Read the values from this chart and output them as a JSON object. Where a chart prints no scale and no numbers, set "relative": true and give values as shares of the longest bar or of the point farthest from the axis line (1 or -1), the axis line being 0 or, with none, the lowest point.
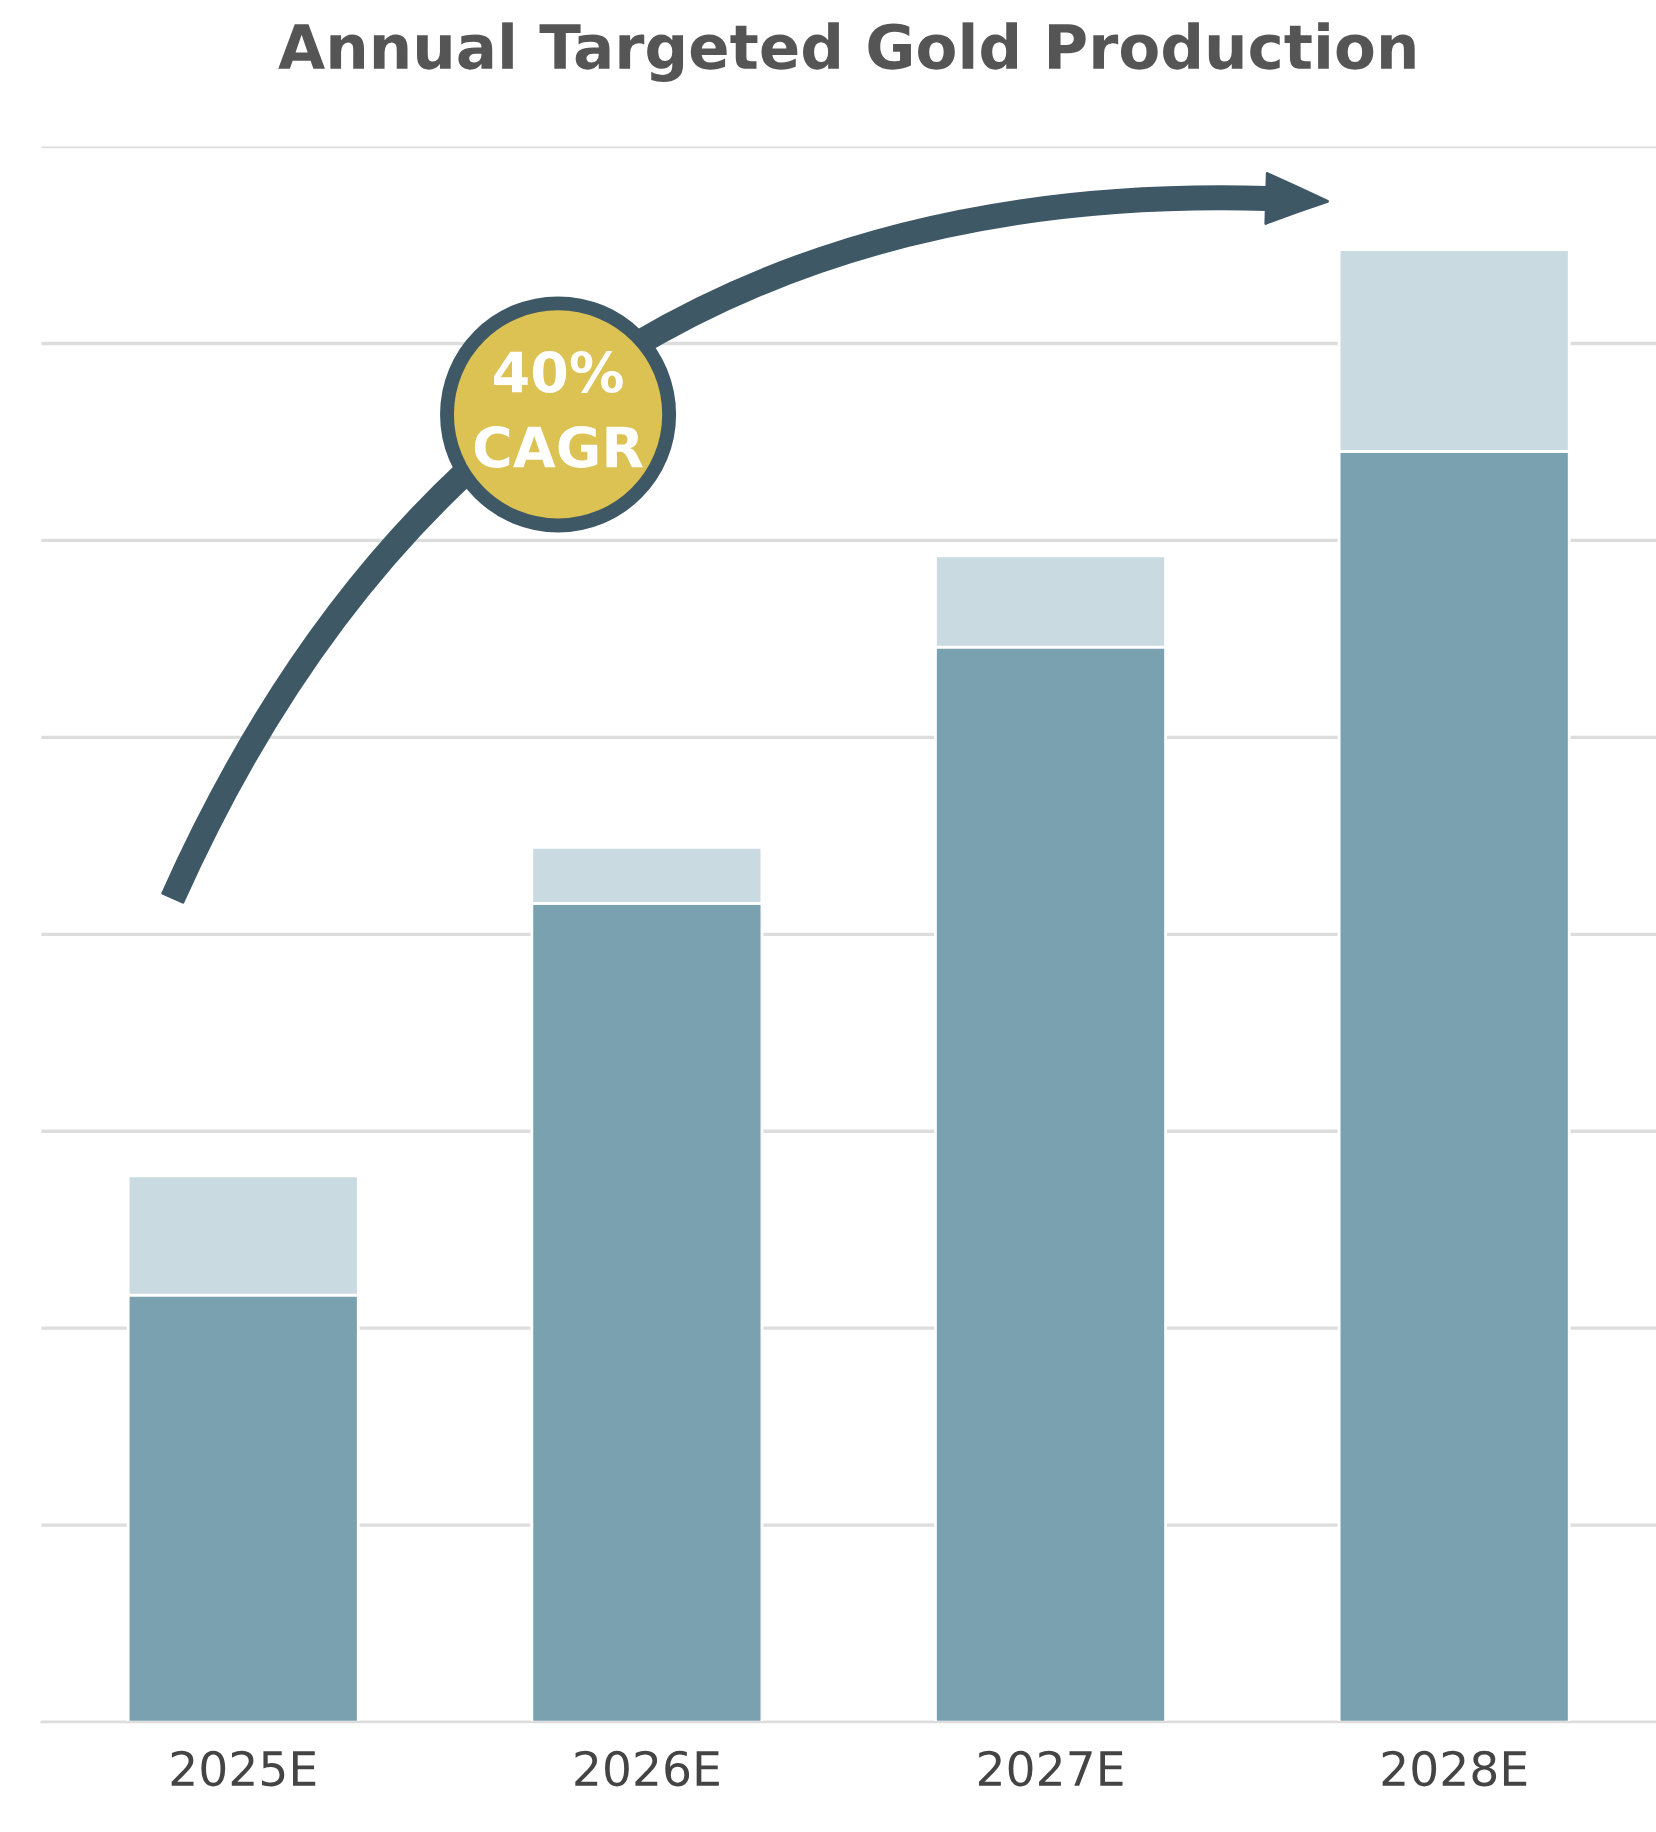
{
  "chart_data": {
    "type": "bar",
    "title": "Annual Targeted Gold Production",
    "categories": [
      "2025E",
      "2026E",
      "2027E",
      "2028E"
    ],
    "relative": true,
    "stacked": true,
    "grid": "y",
    "series": [
      {
        "color": "#7aa1b0",
        "values": [
          0.29,
          0.556,
          0.73,
          0.863
        ]
      },
      {
        "color": "#c9dae0",
        "values": [
          0.081,
          0.038,
          0.062,
          0.137
        ]
      }
    ],
    "annotations": [
      "40%\nCAGR"
    ]
  }
}
